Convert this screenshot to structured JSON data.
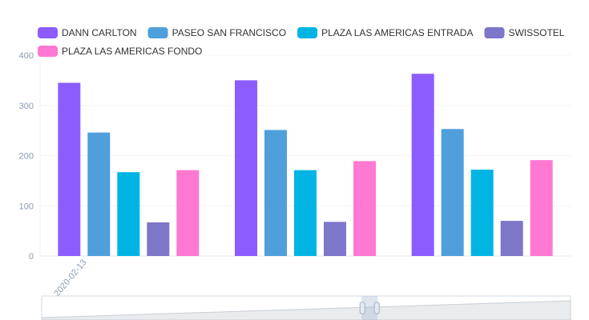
{
  "chart_data": {
    "type": "bar",
    "categories": [
      "2020-02-13",
      "",
      ""
    ],
    "series": [
      {
        "name": "DANN CARLTON",
        "color": "#8c5cff",
        "values": [
          345,
          350,
          363
        ]
      },
      {
        "name": "PASEO SAN FRANCISCO",
        "color": "#4f9fdc",
        "values": [
          246,
          251,
          253
        ]
      },
      {
        "name": "PLAZA LAS AMERICAS ENTRADA",
        "color": "#00b4e4",
        "values": [
          167,
          171,
          172
        ]
      },
      {
        "name": "SWISSOTEL",
        "color": "#7d76c9",
        "values": [
          67,
          68,
          70
        ]
      },
      {
        "name": "PLAZA LAS AMERICAS FONDO",
        "color": "#ff78d2",
        "values": [
          171,
          189,
          191
        ]
      }
    ],
    "y_ticks": [
      0,
      100,
      200,
      300,
      400
    ],
    "ylim": [
      0,
      400
    ],
    "grid": true,
    "legend_position": "top",
    "datazoom": {
      "visible": true,
      "range_end_percent": 62
    }
  }
}
